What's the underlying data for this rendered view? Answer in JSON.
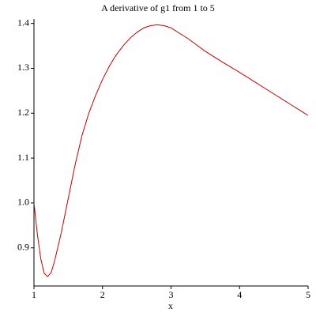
{
  "chart_data": {
    "type": "line",
    "title": "A derivative of g1 from 1 to 5",
    "x_label": "x",
    "x": [
      1.0,
      1.05,
      1.1,
      1.15,
      1.2,
      1.25,
      1.3,
      1.4,
      1.5,
      1.6,
      1.7,
      1.8,
      1.9,
      2.0,
      2.1,
      2.2,
      2.3,
      2.4,
      2.5,
      2.6,
      2.7,
      2.8,
      2.9,
      3.0,
      3.25,
      3.5,
      3.75,
      4.0,
      4.25,
      4.5,
      4.75,
      5.0
    ],
    "series": [
      {
        "color": "#c00000",
        "values": [
          1.0,
          0.93,
          0.875,
          0.843,
          0.836,
          0.845,
          0.87,
          0.935,
          1.01,
          1.085,
          1.15,
          1.2,
          1.24,
          1.275,
          1.305,
          1.33,
          1.35,
          1.367,
          1.38,
          1.39,
          1.395,
          1.397,
          1.395,
          1.39,
          1.366,
          1.338,
          1.314,
          1.291,
          1.267,
          1.243,
          1.219,
          1.195
        ]
      }
    ],
    "xlim": [
      1,
      5
    ],
    "ylim": [
      0.815,
      1.41
    ],
    "xticks": [
      1,
      2,
      3,
      4,
      5
    ],
    "yticks": [
      0.9,
      {
        "value": 1.0,
        "label": "1.0"
      },
      1.1,
      1.2,
      1.3,
      1.4
    ]
  }
}
